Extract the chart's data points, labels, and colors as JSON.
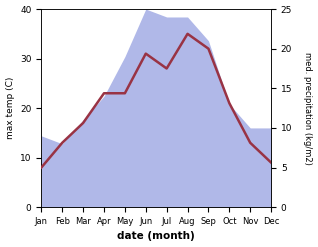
{
  "months": [
    "Jan",
    "Feb",
    "Mar",
    "Apr",
    "May",
    "Jun",
    "Jul",
    "Aug",
    "Sep",
    "Oct",
    "Nov",
    "Dec"
  ],
  "temp": [
    8,
    13,
    17,
    23,
    23,
    31,
    28,
    35,
    32,
    21,
    13,
    9
  ],
  "precip": [
    9,
    8,
    11,
    14,
    19,
    25,
    24,
    24,
    21,
    13,
    10,
    10
  ],
  "temp_color": "#993344",
  "precip_color": "#b0b8e8",
  "ylabel_left": "max temp (C)",
  "ylabel_right": "med. precipitation (kg/m2)",
  "xlabel": "date (month)",
  "ylim_left": [
    0,
    40
  ],
  "ylim_right": [
    0,
    25
  ],
  "bg_color": "#ffffff",
  "line_width": 1.8
}
